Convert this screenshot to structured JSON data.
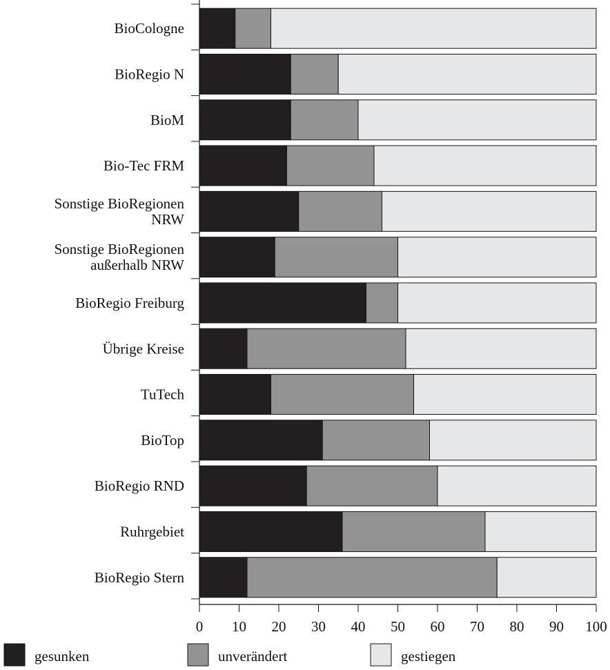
{
  "colors": {
    "gesunken": "#231f20",
    "unveraendert": "#939393",
    "gestiegen": "#e6e7e8",
    "outline": "#111111"
  },
  "chart_data": {
    "type": "bar",
    "orientation": "horizontal",
    "stacked": true,
    "categories": [
      "BioCologne",
      "BioRegio N",
      "BioM",
      "Bio-Tec FRM",
      "Sonstige BioRegionen\nNRW",
      "Sonstige BioRegionen\naußerhalb NRW",
      "BioRegio Freiburg",
      "Übrige Kreise",
      "TuTech",
      "BioTop",
      "BioRegio RND",
      "Ruhrgebiet",
      "BioRegio Stern"
    ],
    "series": [
      {
        "name": "gesunken",
        "values": [
          9,
          23,
          23,
          22,
          25,
          19,
          42,
          12,
          18,
          31,
          27,
          36,
          12
        ]
      },
      {
        "name": "unverändert",
        "values": [
          9,
          12,
          17,
          22,
          21,
          31,
          8,
          40,
          36,
          27,
          33,
          36,
          63
        ]
      },
      {
        "name": "gestiegen",
        "values": [
          82,
          65,
          60,
          56,
          54,
          50,
          50,
          48,
          46,
          42,
          40,
          28,
          25
        ]
      }
    ],
    "xlim": [
      0,
      100
    ],
    "xticks": [
      0,
      10,
      20,
      30,
      40,
      50,
      60,
      70,
      80,
      90,
      100
    ],
    "grid": false,
    "legend_position": "bottom"
  }
}
